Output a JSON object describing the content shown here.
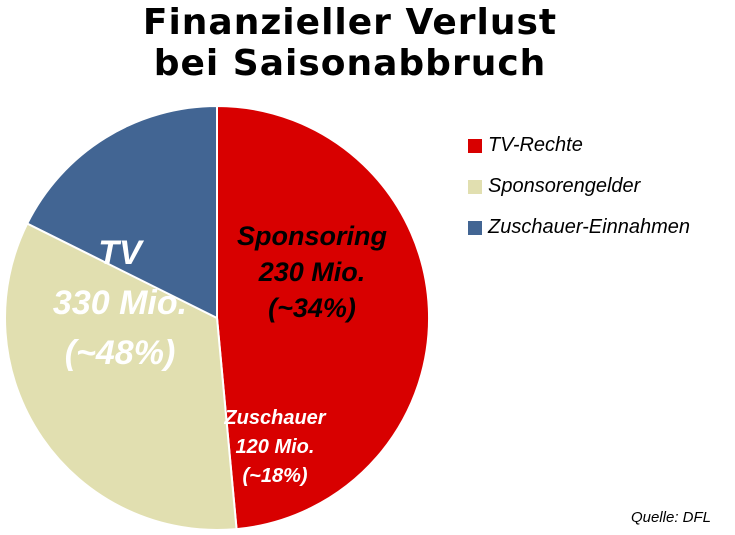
{
  "chart_data": {
    "type": "pie",
    "title": [
      "Finanzieller Verlust",
      "bei Saisonabbruch"
    ],
    "categories": [
      "TV-Rechte",
      "Sponsorengelder",
      "Zuschauer-Einnahmen"
    ],
    "values": [
      330,
      230,
      120
    ],
    "unit": "Mio.",
    "colors": [
      "#d80000",
      "#e1dfb0",
      "#426593"
    ],
    "slice_labels": [
      {
        "name": "TV",
        "value": "330 Mio.",
        "share": "(~48%)"
      },
      {
        "name": "Sponsoring",
        "value": "230 Mio.",
        "share": "(~34%)"
      },
      {
        "name": "Zuschauer",
        "value": "120 Mio.",
        "share": "(~18%)"
      }
    ],
    "legend": {
      "position": "right",
      "items": [
        "TV-Rechte",
        "Sponsorengelder",
        "Zuschauer-Einnahmen"
      ]
    },
    "start_angle_deg": 0,
    "direction": "clockwise"
  },
  "source": "Quelle: DFL"
}
